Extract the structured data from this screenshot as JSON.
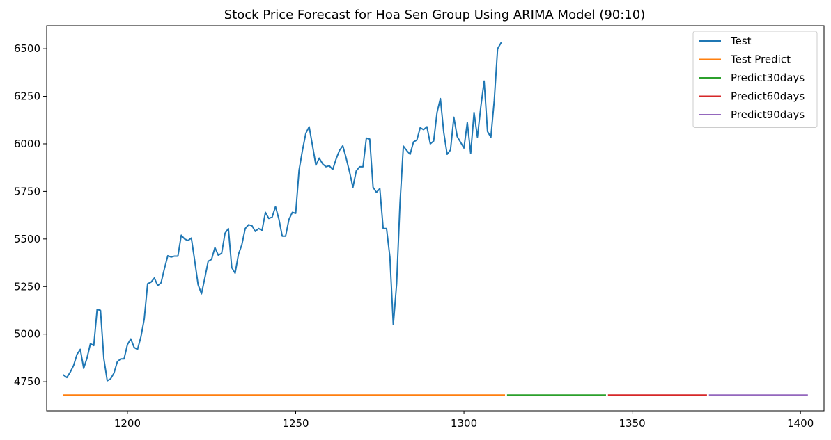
{
  "chart_data": {
    "type": "line",
    "title": "Stock Price Forecast for Hoa Sen Group Using ARIMA Model (90:10)",
    "xlabel": "",
    "ylabel": "",
    "xlim": [
      1176,
      1407
    ],
    "ylim": [
      4597,
      6621
    ],
    "xticks": [
      1200,
      1250,
      1300,
      1350,
      1400
    ],
    "yticks": [
      4750,
      5000,
      5250,
      5500,
      5750,
      6000,
      6250,
      6500
    ],
    "grid": false,
    "legend_position": "top-right",
    "series": [
      {
        "name": "Test",
        "color": "#1f77b4",
        "x": [
          1181,
          1182,
          1183,
          1184,
          1185,
          1186,
          1187,
          1188,
          1189,
          1190,
          1191,
          1192,
          1193,
          1194,
          1195,
          1196,
          1197,
          1198,
          1199,
          1200,
          1201,
          1202,
          1203,
          1204,
          1205,
          1206,
          1207,
          1208,
          1209,
          1210,
          1211,
          1212,
          1213,
          1214,
          1215,
          1216,
          1217,
          1218,
          1219,
          1220,
          1221,
          1222,
          1223,
          1224,
          1225,
          1226,
          1227,
          1228,
          1229,
          1230,
          1231,
          1232,
          1233,
          1234,
          1235,
          1236,
          1237,
          1238,
          1239,
          1240,
          1241,
          1242,
          1243,
          1244,
          1245,
          1246,
          1247,
          1248,
          1249,
          1250,
          1251,
          1252,
          1253,
          1254,
          1255,
          1256,
          1257,
          1258,
          1259,
          1260,
          1261,
          1262,
          1263,
          1264,
          1265,
          1266,
          1267,
          1268,
          1269,
          1270,
          1271,
          1272,
          1273,
          1274,
          1275,
          1276,
          1277,
          1278,
          1279,
          1280,
          1281,
          1282,
          1283,
          1284,
          1285,
          1286,
          1287,
          1288,
          1289,
          1290,
          1291,
          1292,
          1293,
          1294,
          1295,
          1296,
          1297,
          1298,
          1299,
          1300,
          1301,
          1302,
          1303,
          1304,
          1305,
          1306,
          1307,
          1308,
          1309,
          1310,
          1311
        ],
        "values": [
          4785,
          4772,
          4800,
          4835,
          4893,
          4920,
          4820,
          4875,
          4950,
          4940,
          5130,
          5125,
          4870,
          4755,
          4765,
          4795,
          4855,
          4870,
          4870,
          4945,
          4975,
          4930,
          4920,
          4985,
          5080,
          5265,
          5273,
          5295,
          5255,
          5270,
          5345,
          5412,
          5405,
          5410,
          5410,
          5520,
          5500,
          5492,
          5505,
          5385,
          5260,
          5212,
          5295,
          5383,
          5393,
          5455,
          5415,
          5425,
          5530,
          5555,
          5350,
          5320,
          5420,
          5470,
          5555,
          5575,
          5570,
          5540,
          5555,
          5545,
          5640,
          5608,
          5615,
          5670,
          5605,
          5515,
          5515,
          5603,
          5640,
          5635,
          5862,
          5965,
          6055,
          6090,
          5990,
          5888,
          5925,
          5895,
          5880,
          5885,
          5865,
          5920,
          5965,
          5990,
          5925,
          5853,
          5772,
          5858,
          5880,
          5880,
          6030,
          6025,
          5772,
          5745,
          5765,
          5555,
          5555,
          5405,
          5050,
          5265,
          5690,
          5988,
          5965,
          5945,
          6010,
          6020,
          6085,
          6075,
          6090,
          6000,
          6015,
          6165,
          6238,
          6060,
          5945,
          5968,
          6140,
          6038,
          6008,
          5978,
          6113,
          5950,
          6165,
          6035,
          6193,
          6330,
          6065,
          6035,
          6228,
          6500,
          6530
        ]
      },
      {
        "name": "Test Predict",
        "color": "#ff7f0e",
        "x": [
          1181,
          1312
        ],
        "values": [
          4680,
          4680
        ]
      },
      {
        "name": "Predict30days",
        "color": "#2ca02c",
        "x": [
          1313,
          1342
        ],
        "values": [
          4680,
          4680
        ]
      },
      {
        "name": "Predict60days",
        "color": "#d62728",
        "x": [
          1343,
          1372
        ],
        "values": [
          4680,
          4680
        ]
      },
      {
        "name": "Predict90days",
        "color": "#9467bd",
        "x": [
          1373,
          1402
        ],
        "values": [
          4680,
          4680
        ]
      }
    ]
  }
}
